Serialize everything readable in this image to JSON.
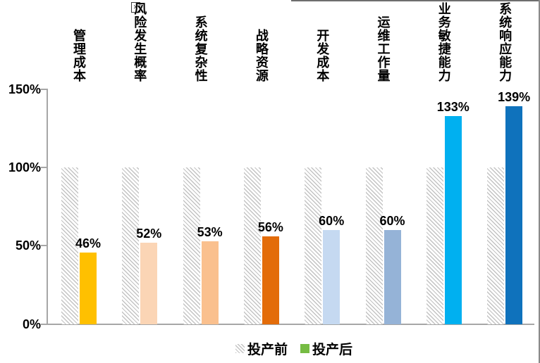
{
  "chart_data": {
    "type": "bar",
    "title": "",
    "categories": [
      "管理成本",
      "风险发生概率",
      "系统复杂性",
      "战略资源",
      "开发成本",
      "运维工作量",
      "业务敏捷能力",
      "系统响应能力"
    ],
    "series": [
      {
        "name": "投产前",
        "style": "hatched",
        "values": [
          100,
          100,
          100,
          100,
          100,
          100,
          100,
          100
        ]
      },
      {
        "name": "投产后",
        "values": [
          46,
          52,
          53,
          56,
          60,
          60,
          133,
          139
        ]
      }
    ],
    "value_labels": [
      "46%",
      "52%",
      "53%",
      "56%",
      "60%",
      "60%",
      "133%",
      "139%"
    ],
    "bar_colors": [
      "#FFC000",
      "#FBD5B5",
      "#FAC08E",
      "#E36C09",
      "#C5D9F1",
      "#95B3D7",
      "#00B0F0",
      "#0F72BC"
    ],
    "yticks": [
      "0%",
      "50%",
      "100%",
      "150%"
    ],
    "ylim": [
      0,
      150
    ],
    "grid": false,
    "legend_position": "bottom"
  },
  "legend": {
    "before_swatch": "hatched",
    "after_swatch_color": "#76BC43"
  },
  "colors": {
    "hatch_line": "#C3C3C3",
    "axis": "#A6A6A6",
    "text": "#000000",
    "background": "#FFFFFF",
    "partial_border": "#6E6E6E"
  },
  "artifacts": {
    "inline_object_marker": "✕",
    "inline_object_trailing_text": "."
  }
}
